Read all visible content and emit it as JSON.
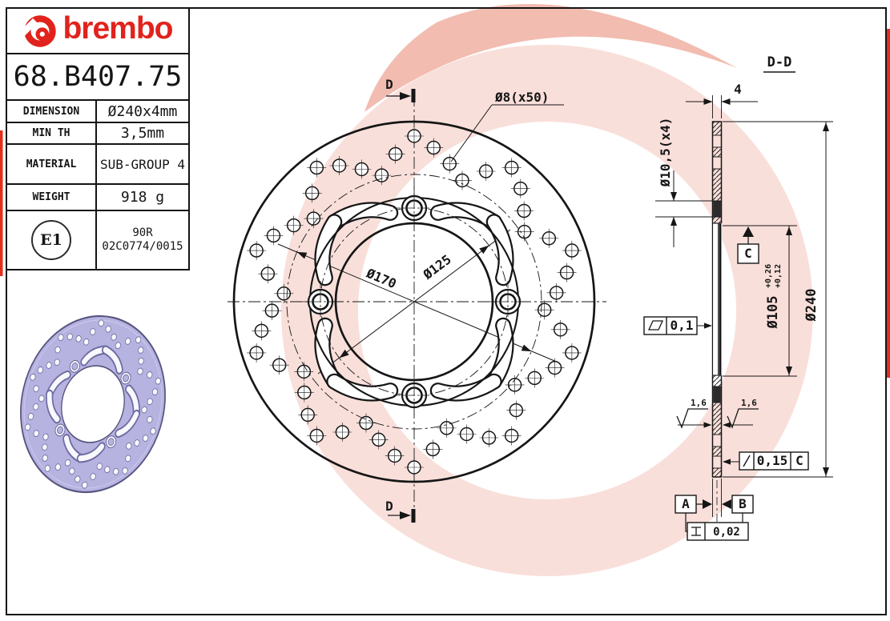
{
  "brand": "brembo",
  "part_number": "68.B407.75",
  "spec_table": {
    "rows": [
      {
        "label": "DIMENSION",
        "value": "Ø240x4mm"
      },
      {
        "label": "MIN TH",
        "value": "3,5mm"
      },
      {
        "label": "MATERIAL",
        "value": "SUB-GROUP 4"
      },
      {
        "label": "WEIGHT",
        "value": "918 g"
      }
    ]
  },
  "homologation": {
    "badge": "E1",
    "line1": "90R",
    "line2": "02C0774/0015"
  },
  "front_view": {
    "section_label_top": "D",
    "section_label_bottom": "D",
    "holes_label": "Ø8(x50)",
    "dia_170": "Ø170",
    "dia_125": "Ø125"
  },
  "section_view": {
    "title": "D-D",
    "thickness": "4",
    "hole_dia": "Ø10,5(x4)",
    "bore_dia": "Ø105",
    "bore_tol_up": "+0,26",
    "bore_tol_low": "+0,12",
    "outer_dia": "Ø240",
    "flatness": "0,1",
    "roughness_left": "1,6",
    "roughness_right": "1,6",
    "runout": "0,15",
    "runout_ref": "C",
    "datum_c": "C",
    "datum_a": "A",
    "datum_b": "B",
    "parallelism": "0,02"
  },
  "colors": {
    "brand_red": "#e0231c",
    "line": "#161616",
    "watermark_pink": "#eb9d8d",
    "watermark_salmon": "#e57a62",
    "photo_lavender": "#b7b3e0"
  }
}
